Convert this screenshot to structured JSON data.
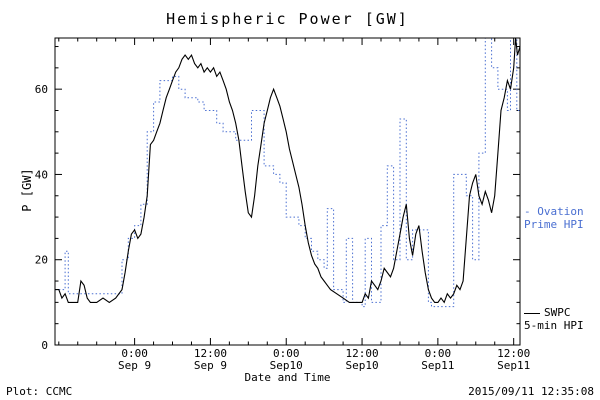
{
  "footer": {
    "left": "Plot: CCMC",
    "right": "2015/09/11 12:35:08"
  },
  "legend": {
    "ovation": {
      "marker": "- ",
      "line1": "Ovation",
      "line2": "Prime HPI",
      "color": "#4a6fd1"
    },
    "swpc": {
      "line1": "SWPC",
      "line2": "5-min HPI",
      "color": "#000000"
    }
  },
  "chart_data": {
    "type": "line",
    "title": "Hemispheric Power [GW]",
    "xlabel": "Date and Time",
    "ylabel": "P [GW]",
    "xlim_hours": [
      11.4,
      85
    ],
    "ylim": [
      0,
      72
    ],
    "x_minor_step": 3,
    "y_minor_step": 5,
    "grid": false,
    "legend_position": "right",
    "x_ticks": [
      {
        "hour": 24,
        "line1": "0:00",
        "line2": "Sep 9"
      },
      {
        "hour": 36,
        "line1": "12:00",
        "line2": "Sep 9"
      },
      {
        "hour": 48,
        "line1": "0:00",
        "line2": "Sep10"
      },
      {
        "hour": 60,
        "line1": "12:00",
        "line2": "Sep10"
      },
      {
        "hour": 72,
        "line1": "0:00",
        "line2": "Sep11"
      },
      {
        "hour": 84,
        "line1": "12:00",
        "line2": "Sep11"
      }
    ],
    "y_ticks": [
      {
        "value": 0,
        "label": "0"
      },
      {
        "value": 20,
        "label": "20"
      },
      {
        "value": 40,
        "label": "40"
      },
      {
        "value": 60,
        "label": "60"
      }
    ],
    "series": [
      {
        "id": "ovation-prime-hpi",
        "name": "Ovation Prime HPI",
        "color": "#4a6fd1",
        "step": true,
        "dash": "1.5 2.3",
        "width": 1,
        "x": [
          11.4,
          12,
          13,
          13.5,
          15,
          21.5,
          22,
          23,
          24,
          25,
          26,
          27,
          28,
          30,
          31,
          32,
          34,
          35,
          37,
          38,
          40,
          42,
          42.5,
          44,
          44.5,
          46,
          47,
          48,
          50,
          51,
          52,
          53,
          54,
          54.5,
          55,
          55.5,
          56,
          57,
          57.5,
          58,
          58.5,
          60,
          60.5,
          61,
          61.5,
          62.5,
          63,
          63.5,
          64,
          64.5,
          65,
          65.5,
          66,
          66.5,
          67,
          68,
          70,
          70.5,
          71,
          74,
          74.5,
          76,
          76.5,
          77,
          77.5,
          78,
          78.5,
          79,
          79.5,
          80,
          80.5,
          81,
          81.5,
          82,
          83,
          83.5,
          84,
          84.5,
          85
        ],
        "y": [
          13,
          13,
          22,
          12,
          12,
          12,
          20,
          25,
          28,
          33,
          50,
          57,
          62,
          63,
          60,
          58,
          57,
          55,
          52,
          50,
          48,
          48,
          55,
          55,
          42,
          40,
          38,
          30,
          28,
          25,
          22,
          20,
          18,
          32,
          32,
          13,
          13,
          10,
          25,
          25,
          10,
          9,
          25,
          25,
          10,
          10,
          28,
          28,
          42,
          42,
          20,
          20,
          53,
          53,
          20,
          27,
          27,
          10,
          9,
          9,
          40,
          40,
          35,
          35,
          20,
          20,
          45,
          45,
          72,
          72,
          65,
          65,
          60,
          60,
          55,
          72,
          72,
          55,
          55
        ]
      },
      {
        "id": "swpc-5min-hpi",
        "name": "SWPC 5-min HPI",
        "color": "#000000",
        "step": false,
        "dash": "",
        "width": 1.1,
        "x": [
          11.4,
          12,
          12.5,
          13,
          13.5,
          14,
          15,
          15.5,
          16,
          16.5,
          17,
          18,
          19,
          20,
          21,
          22,
          22.5,
          23,
          23.5,
          24,
          24.5,
          25,
          25.5,
          26,
          26.5,
          27,
          27.5,
          28,
          28.5,
          29,
          29.5,
          30,
          30.5,
          31,
          31.5,
          32,
          32.5,
          33,
          33.5,
          34,
          34.5,
          35,
          35.5,
          36,
          36.5,
          37,
          37.5,
          38,
          38.5,
          39,
          39.5,
          40,
          40.5,
          41,
          41.5,
          42,
          42.5,
          43,
          43.5,
          44,
          44.5,
          45,
          45.5,
          46,
          46.5,
          47,
          47.5,
          48,
          48.5,
          49,
          49.5,
          50,
          50.5,
          51,
          51.5,
          52,
          52.5,
          53,
          53.5,
          54,
          54.5,
          55,
          56,
          57,
          58,
          59,
          60,
          60.5,
          61,
          61.5,
          62,
          62.5,
          63,
          63.5,
          64,
          64.5,
          65,
          65.5,
          66,
          66.5,
          67,
          67.5,
          68,
          68.5,
          69,
          69.5,
          70,
          70.5,
          71,
          71.5,
          72,
          72.5,
          73,
          73.5,
          74,
          74.5,
          75,
          75.5,
          76,
          76.5,
          77,
          77.5,
          78,
          78.5,
          79,
          79.5,
          80,
          80.5,
          81,
          81.5,
          82,
          82.5,
          83,
          83.5,
          84,
          84.3,
          84.6,
          85
        ],
        "y": [
          13,
          13,
          11,
          12,
          10,
          10,
          10,
          15,
          14,
          11,
          10,
          10,
          11,
          10,
          11,
          13,
          17,
          22,
          26,
          27,
          25,
          26,
          30,
          35,
          47,
          48,
          50,
          52,
          55,
          58,
          60,
          62,
          64,
          65,
          67,
          68,
          67,
          68,
          66,
          65,
          66,
          64,
          65,
          64,
          65,
          63,
          64,
          62,
          60,
          57,
          55,
          52,
          48,
          42,
          36,
          31,
          30,
          35,
          42,
          47,
          52,
          55,
          58,
          60,
          58,
          56,
          53,
          50,
          46,
          43,
          40,
          37,
          33,
          28,
          24,
          21,
          19,
          18,
          16,
          15,
          14,
          13,
          12,
          11,
          10,
          10,
          10,
          12,
          11,
          15,
          14,
          13,
          15,
          18,
          17,
          16,
          18,
          22,
          26,
          30,
          33,
          25,
          21,
          26,
          28,
          22,
          17,
          13,
          11,
          10,
          10,
          11,
          10,
          12,
          11,
          12,
          14,
          13,
          15,
          25,
          35,
          38,
          40,
          35,
          33,
          36,
          34,
          31,
          35,
          45,
          55,
          58,
          62,
          60,
          65,
          72,
          68,
          70
        ]
      }
    ]
  }
}
